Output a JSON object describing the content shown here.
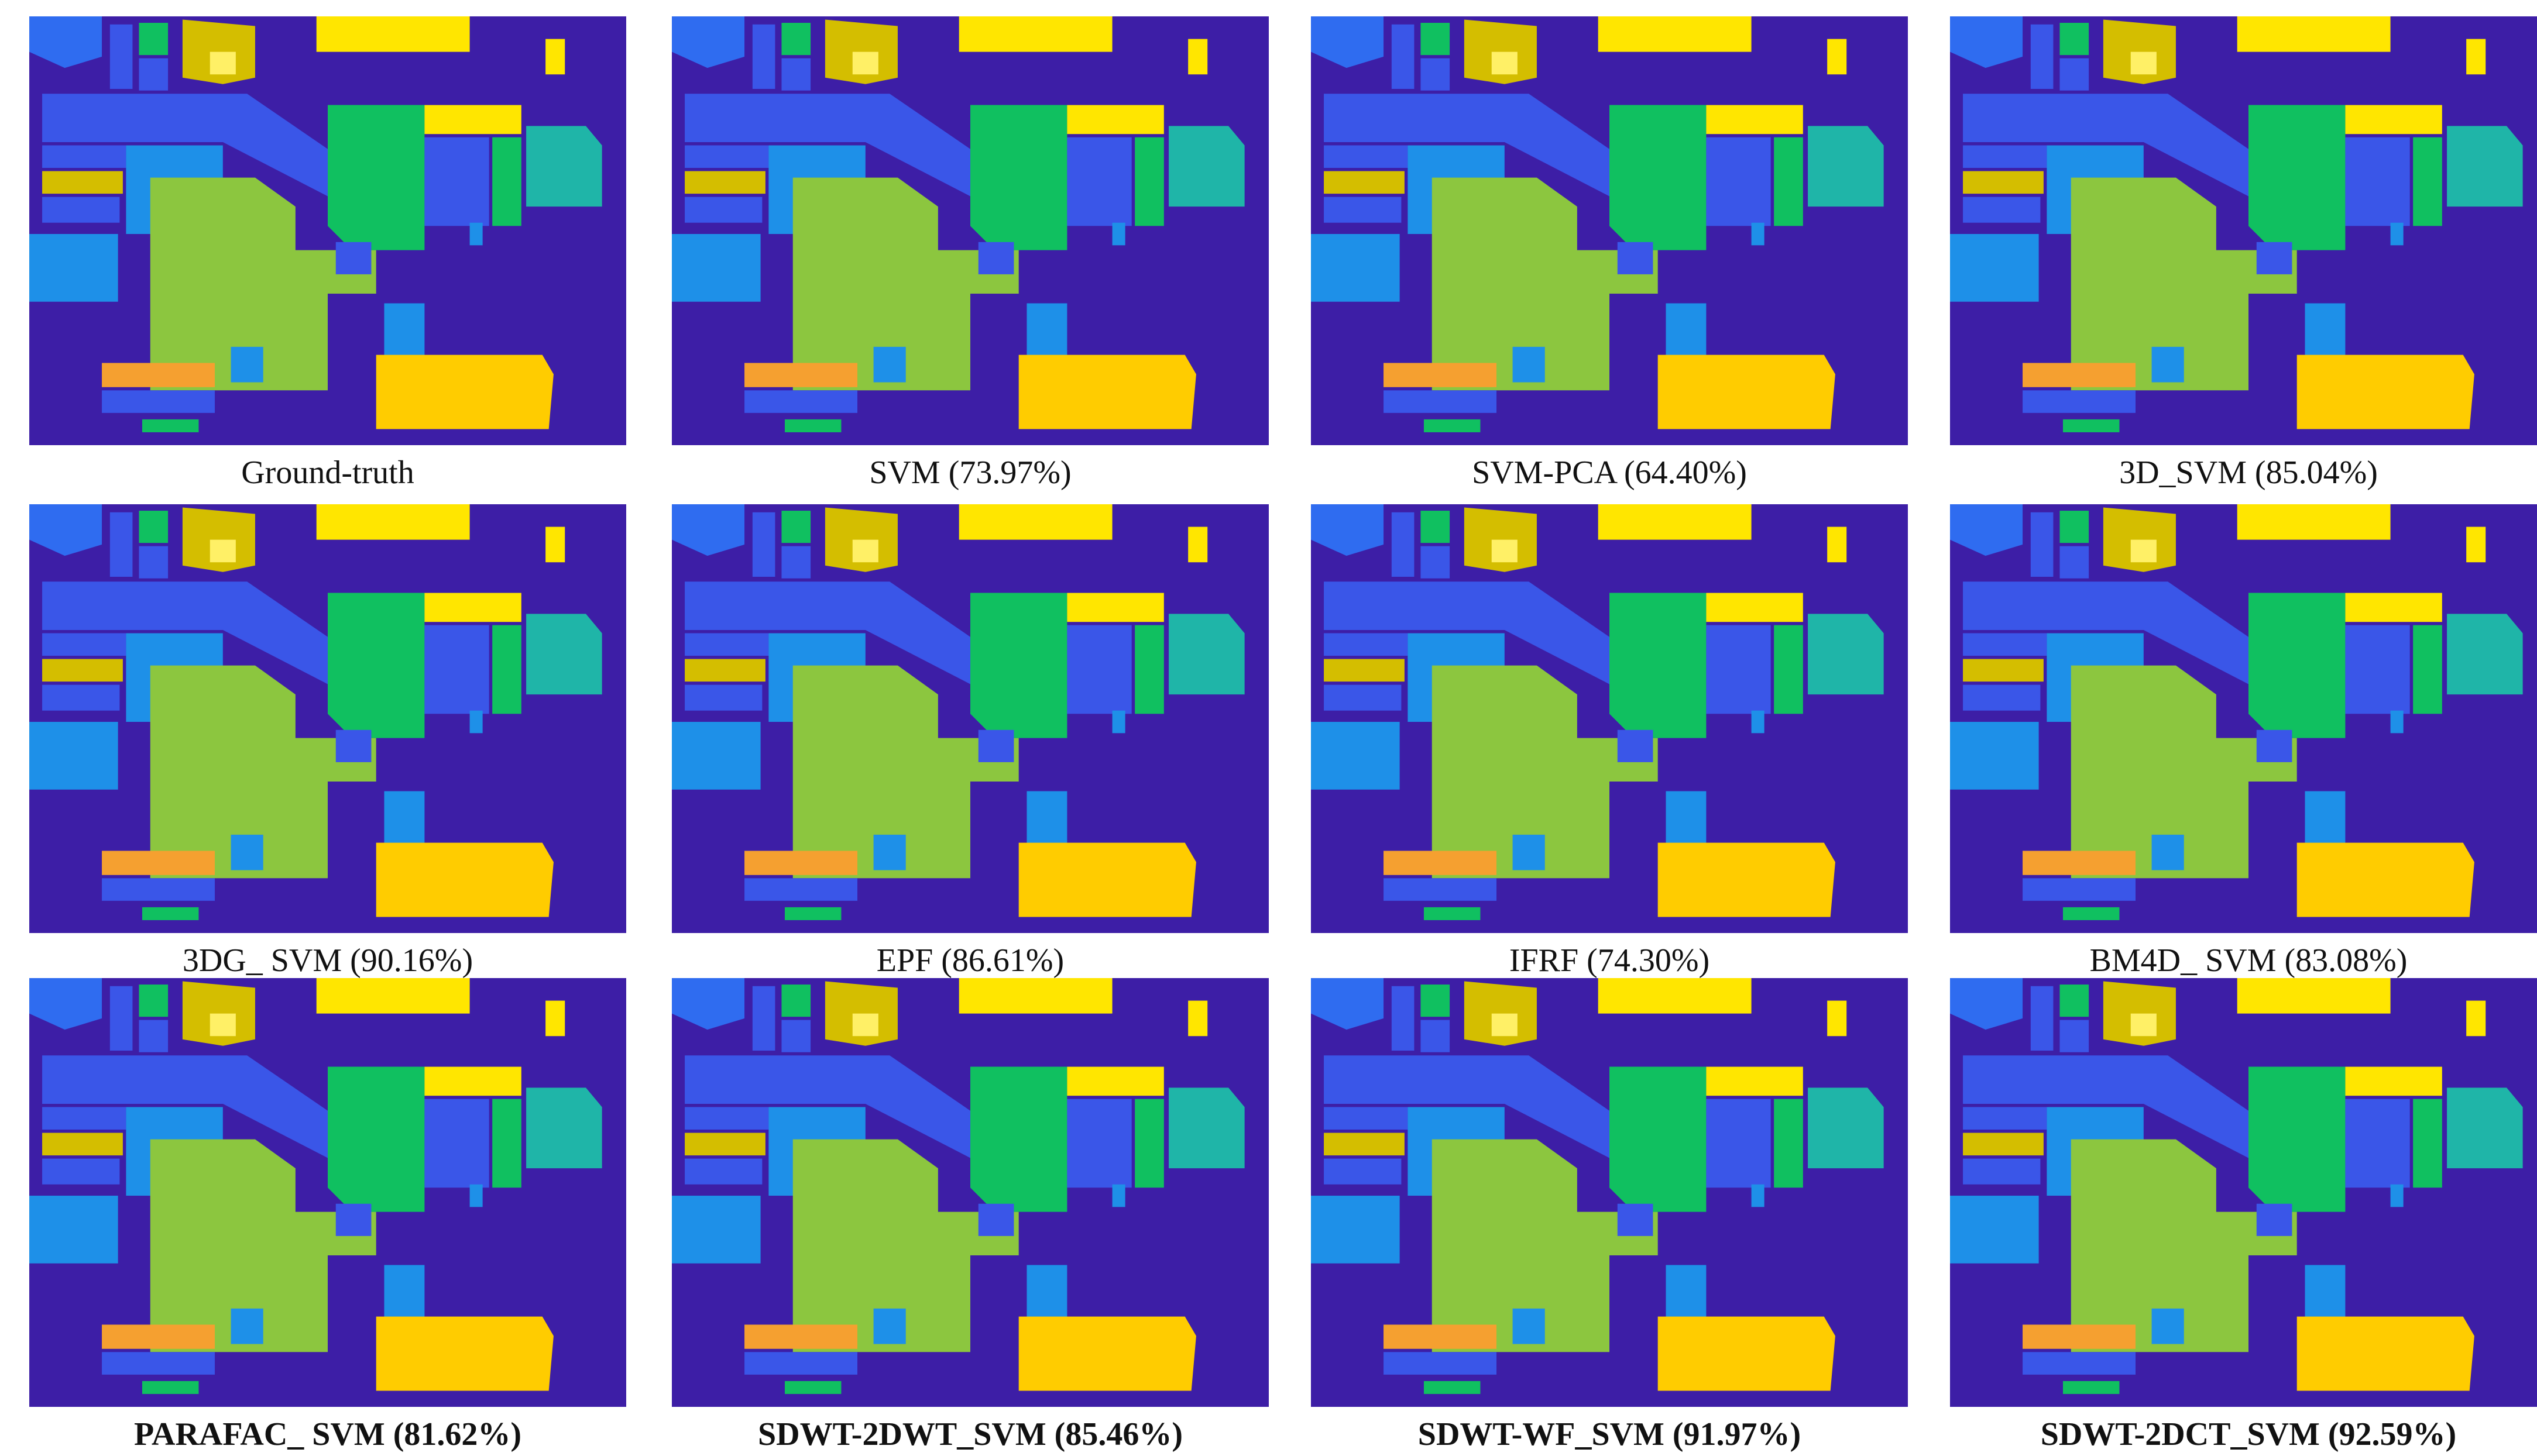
{
  "panels": [
    {
      "caption": "Ground-truth"
    },
    {
      "caption": "SVM (73.97%)"
    },
    {
      "caption": "SVM-PCA (64.40%)"
    },
    {
      "caption": "3D_SVM (85.04%)"
    },
    {
      "caption": "3DG_ SVM (90.16%)"
    },
    {
      "caption": "EPF (86.61%)"
    },
    {
      "caption": "IFRF (74.30%)"
    },
    {
      "caption": "BM4D_ SVM (83.08%)"
    },
    {
      "caption": "PARAFAC_ SVM (81.62%)"
    },
    {
      "caption": "SDWT-2DWT_SVM (85.46%)"
    },
    {
      "caption": "SDWT-WF_SVM (91.97%)"
    },
    {
      "caption": "SDWT-2DCT_SVM (92.59%)"
    }
  ]
}
